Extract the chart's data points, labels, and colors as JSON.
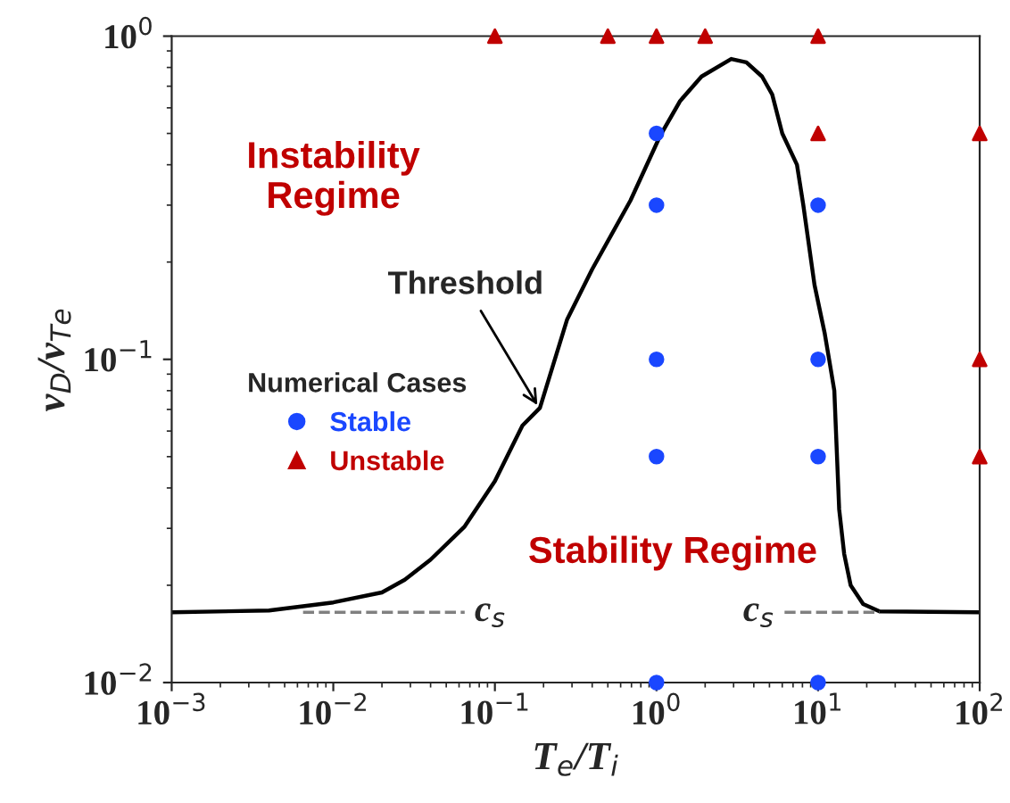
{
  "chart_data": {
    "type": "line",
    "xlabel": "T$_{e}$/T$_{i}$",
    "ylabel": "v$_{D}$/v$_{Te}$",
    "log": "xy",
    "xlim": [
      0.001,
      100
    ],
    "xticks": [
      {
        "value": 0.001,
        "label": "10$^{−3}$"
      },
      {
        "value": 0.01,
        "label": "10$^{−2}$"
      },
      {
        "value": 0.1,
        "label": "10$^{−1}$"
      },
      {
        "value": 1,
        "label": "10$^{0}$"
      },
      {
        "value": 10,
        "label": "10$^{1}$"
      },
      {
        "value": 100,
        "label": "10$^{2}$"
      }
    ],
    "ylim": [
      0.01,
      1
    ],
    "yticks": [
      {
        "value": 0.01,
        "label": "10$^{−2}$"
      },
      {
        "value": 0.1,
        "label": "10$^{−1}$"
      },
      {
        "value": 1,
        "label": "10$^{0}$"
      }
    ],
    "grid": false,
    "legend": "left",
    "legend_title": "Numerical Cases",
    "series": [
      {
        "color": "#000000",
        "line_style": "solid",
        "marker": "none",
        "x": [
          0.001,
          0.004,
          0.01,
          0.02,
          0.0277,
          0.04,
          0.065,
          0.1,
          0.148,
          0.19,
          0.28,
          0.4,
          0.69,
          1.05,
          1.4,
          1.9,
          2.9,
          3.6,
          4.5,
          5.2,
          6,
          7.4,
          8.1,
          9.5,
          11,
          11.7,
          12.6,
          13.5,
          14.5,
          15.9,
          19,
          24,
          100
        ],
        "values": [
          0.0165,
          0.0167,
          0.0177,
          0.019,
          0.0208,
          0.024,
          0.0304,
          0.042,
          0.0624,
          0.0708,
          0.133,
          0.19,
          0.31,
          0.49,
          0.63,
          0.75,
          0.85,
          0.83,
          0.75,
          0.66,
          0.5,
          0.4,
          0.3,
          0.17,
          0.12,
          0.1,
          0.08,
          0.0344,
          0.025,
          0.02,
          0.0175,
          0.0166,
          0.0165
        ]
      },
      {
        "color": "#808080",
        "line_style": "dashed",
        "marker": "none",
        "x": [
          0.0065,
          0.065
        ],
        "values": [
          0.0165,
          0.0165
        ]
      },
      {
        "color": "#808080",
        "line_style": "dashed",
        "marker": "none",
        "x": [
          6.2,
          24
        ],
        "values": [
          0.0165,
          0.0165
        ]
      },
      {
        "type": "scatter",
        "name": "Stable",
        "color": "#1a47ff",
        "marker": "circle",
        "x": [
          1,
          1,
          10,
          1,
          10,
          1,
          10,
          1,
          10
        ],
        "values": [
          0.5,
          0.3,
          0.3,
          0.1,
          0.1,
          0.05,
          0.05,
          0.01,
          0.01
        ]
      },
      {
        "type": "scatter",
        "name": "Unstable",
        "color": "#c00000",
        "marker": "triangle",
        "x": [
          0.1,
          0.5,
          1,
          2,
          10,
          10,
          100,
          100,
          100
        ],
        "values": [
          1,
          1,
          1,
          1,
          1,
          0.5,
          0.5,
          0.1,
          0.05
        ]
      }
    ],
    "annotations": [
      "Instability Regime",
      "Stability Regime",
      {
        "text": "Threshold",
        "x": 0.19,
        "y": 0.07
      },
      {
        "text": "c$_{s}$",
        "x": 0.065,
        "y": 0.0165
      },
      {
        "text": "c$_{s}$",
        "x": 6.2,
        "y": 0.0165
      }
    ]
  }
}
